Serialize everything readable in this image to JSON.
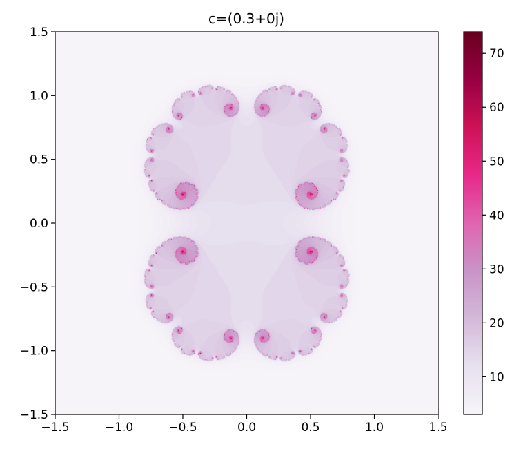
{
  "chart_data": {
    "type": "heatmap",
    "title": "c=(0.3+0j)",
    "xlabel": "",
    "ylabel": "",
    "xlim": [
      -1.5,
      1.5
    ],
    "ylim": [
      -1.5,
      1.5
    ],
    "xticks": [
      -1.5,
      -1.0,
      -0.5,
      0.0,
      0.5,
      1.0,
      1.5
    ],
    "xtick_labels": [
      "−1.5",
      "−1.0",
      "−0.5",
      "0.0",
      "0.5",
      "1.0",
      "1.5"
    ],
    "yticks": [
      -1.5,
      -1.0,
      -0.5,
      0.0,
      0.5,
      1.0,
      1.5
    ],
    "ytick_labels": [
      "−1.5",
      "−1.0",
      "−0.5",
      "0.0",
      "0.5",
      "1.0",
      "1.5"
    ],
    "c_real": 0.3,
    "c_imag": 0.0,
    "max_iterations": 74,
    "colorbar": {
      "range": [
        3,
        74
      ],
      "ticks": [
        10,
        20,
        30,
        40,
        50,
        60,
        70
      ],
      "tick_labels": [
        "10",
        "20",
        "30",
        "40",
        "50",
        "60",
        "70"
      ],
      "colormap": "PuRd",
      "colors": [
        "#f7f4f9",
        "#e7e1ef",
        "#d4b9da",
        "#c994c7",
        "#df65b0",
        "#e7298a",
        "#ce1256",
        "#980043",
        "#67001f"
      ]
    },
    "grid": false
  }
}
